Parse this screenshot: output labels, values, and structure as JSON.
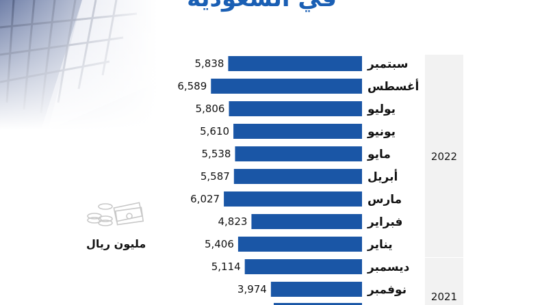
{
  "title": "في السعودية",
  "unit_label": "مليون ريال",
  "colors": {
    "bar": "#1a56a6",
    "year_box": "#f2f2f2",
    "title": "#1a5fb4"
  },
  "icons": {
    "decor": "building-photo",
    "unit": "money-stack-icon"
  },
  "chart_data": {
    "type": "bar",
    "orientation": "horizontal",
    "categories": [
      "سبتمبر",
      "أغسطس",
      "يوليو",
      "يونيو",
      "مايو",
      "أبريل",
      "مارس",
      "فبراير",
      "يناير",
      "ديسمبر",
      "نوفمبر"
    ],
    "values": [
      5838,
      6589,
      5806,
      5610,
      5538,
      5587,
      6027,
      4823,
      5406,
      5114,
      3974
    ],
    "value_labels": [
      "5,838",
      "6,589",
      "5,806",
      "5,610",
      "5,538",
      "5,587",
      "6,027",
      "4,823",
      "5,406",
      "5,114",
      "3,974"
    ],
    "groups": [
      {
        "label": "2022",
        "from": 0,
        "to": 8
      },
      {
        "label": "2021",
        "from": 9,
        "to": 10
      }
    ],
    "xlim": [
      0,
      7000
    ],
    "legend": "none",
    "grid": false
  }
}
